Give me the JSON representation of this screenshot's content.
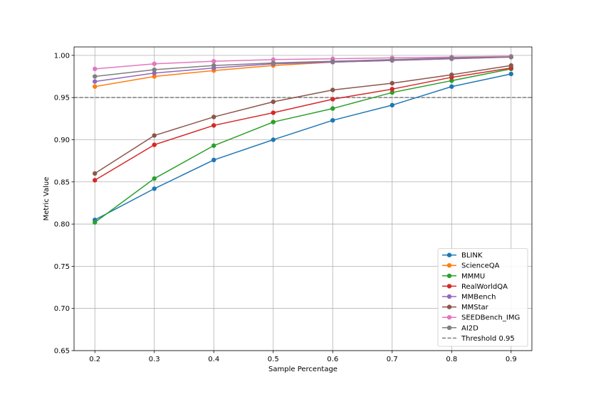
{
  "chart_data": {
    "type": "line",
    "title": "",
    "xlabel": "Sample Percentage",
    "ylabel": "Metric Value",
    "x": [
      0.2,
      0.3,
      0.4,
      0.5,
      0.6,
      0.7,
      0.8,
      0.9
    ],
    "x_tick_labels": [
      "0.2",
      "0.3",
      "0.4",
      "0.5",
      "0.6",
      "0.7",
      "0.8",
      "0.9"
    ],
    "xlim": [
      0.165,
      0.935
    ],
    "ylim": [
      0.65,
      1.01
    ],
    "y_ticks": [
      0.65,
      0.7,
      0.75,
      0.8,
      0.85,
      0.9,
      0.95,
      1.0
    ],
    "y_tick_labels": [
      "0.65",
      "0.70",
      "0.75",
      "0.80",
      "0.85",
      "0.90",
      "0.95",
      "1.00"
    ],
    "grid": true,
    "legend_position": "lower-right",
    "series": [
      {
        "name": "BLINK",
        "color": "#1f77b4",
        "values": [
          0.805,
          0.842,
          0.876,
          0.9,
          0.923,
          0.941,
          0.963,
          0.978
        ]
      },
      {
        "name": "ScienceQA",
        "color": "#ff7f0e",
        "values": [
          0.963,
          0.975,
          0.982,
          0.988,
          0.992,
          0.994,
          0.996,
          0.998
        ]
      },
      {
        "name": "MMMU",
        "color": "#2ca02c",
        "values": [
          0.802,
          0.854,
          0.893,
          0.921,
          0.937,
          0.956,
          0.97,
          0.984
        ]
      },
      {
        "name": "RealWorldQA",
        "color": "#d62728",
        "values": [
          0.852,
          0.894,
          0.917,
          0.932,
          0.948,
          0.96,
          0.974,
          0.985
        ]
      },
      {
        "name": "MMBench",
        "color": "#9467bd",
        "values": [
          0.969,
          0.979,
          0.985,
          0.99,
          0.992,
          0.994,
          0.996,
          0.998
        ]
      },
      {
        "name": "MMStar",
        "color": "#8c564b",
        "values": [
          0.86,
          0.905,
          0.927,
          0.945,
          0.959,
          0.967,
          0.977,
          0.988
        ]
      },
      {
        "name": "SEEDBench_IMG",
        "color": "#e377c2",
        "values": [
          0.984,
          0.99,
          0.993,
          0.995,
          0.996,
          0.997,
          0.998,
          0.999
        ]
      },
      {
        "name": "AI2D",
        "color": "#7f7f7f",
        "values": [
          0.975,
          0.983,
          0.988,
          0.991,
          0.993,
          0.995,
          0.997,
          0.998
        ]
      }
    ],
    "threshold": {
      "name": "Threshold 0.95",
      "value": 0.95,
      "color": "#7f7f7f",
      "style": "dashed"
    }
  }
}
